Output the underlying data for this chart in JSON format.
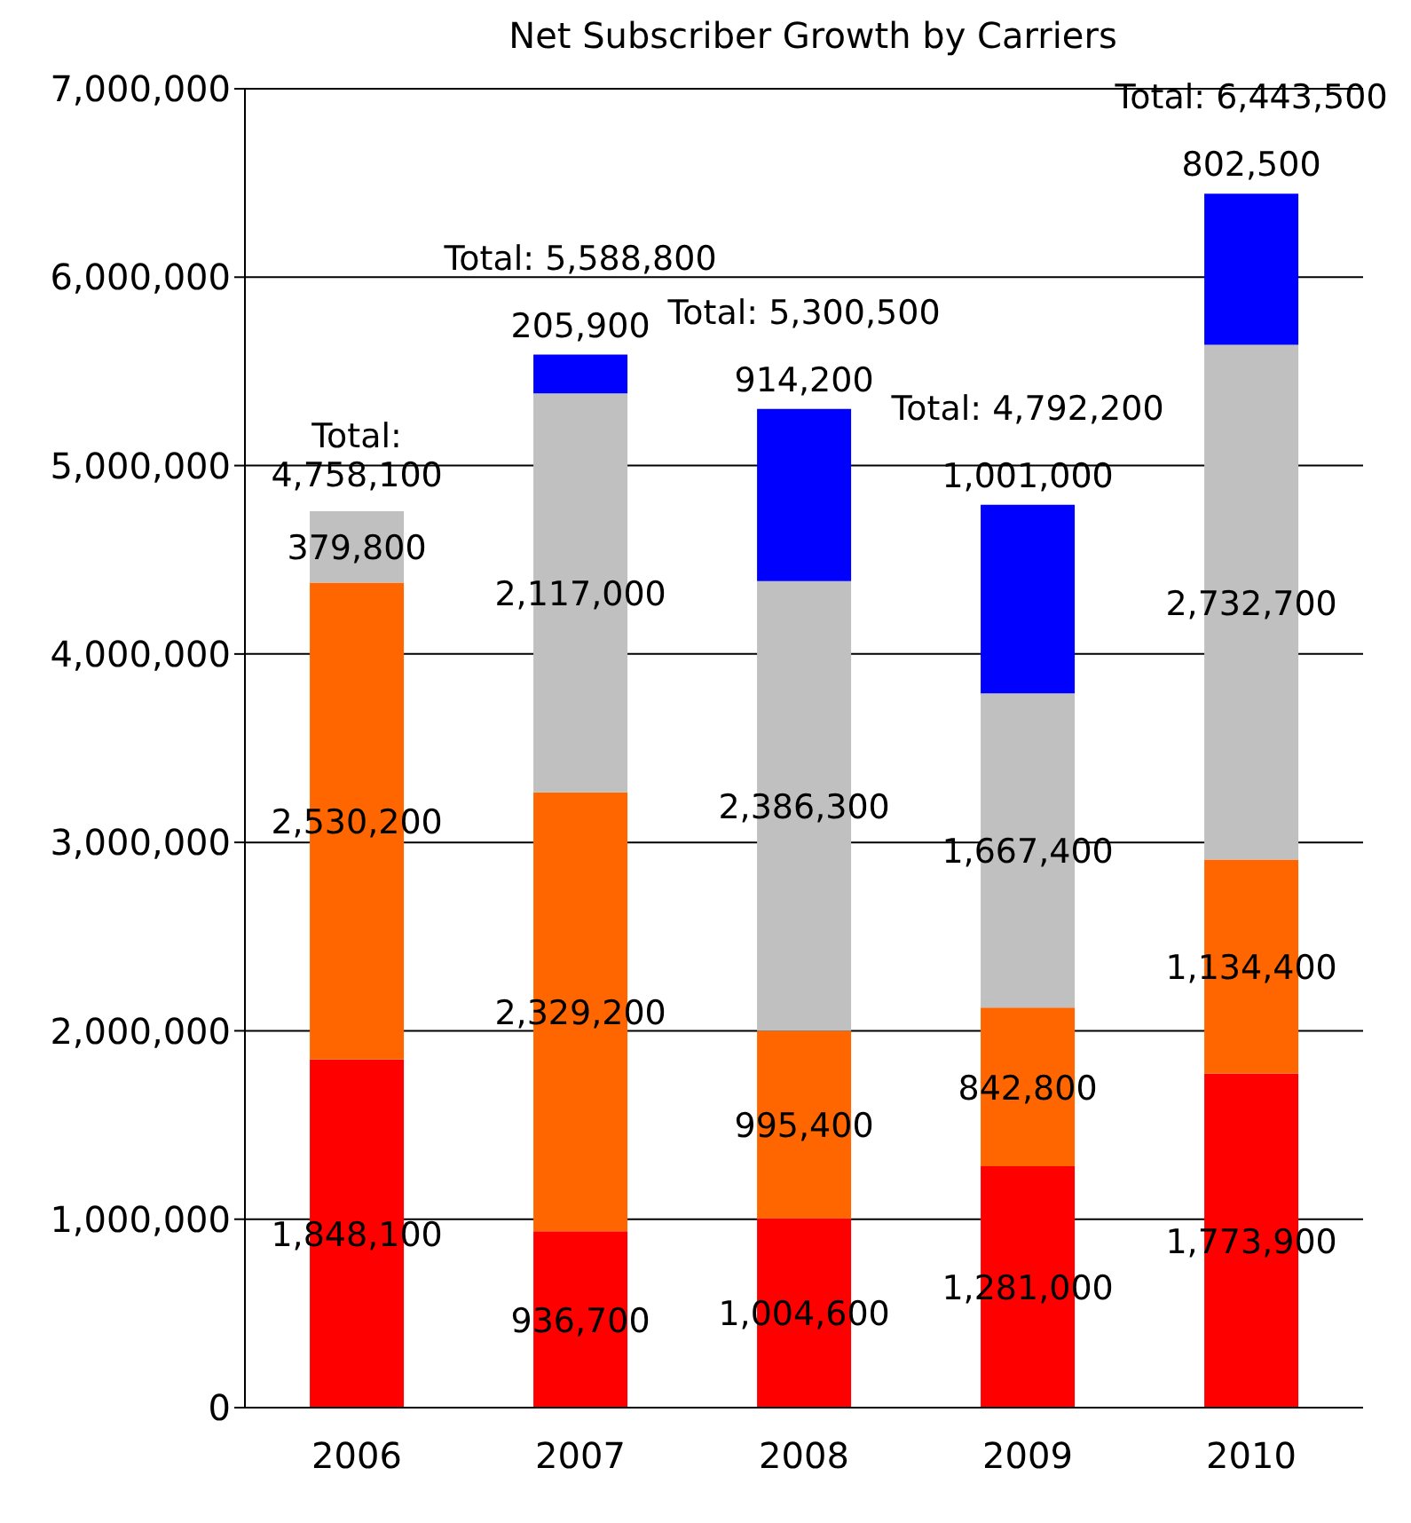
{
  "chart_data": {
    "type": "bar",
    "title": "Net Subscriber Growth by Carriers",
    "categories": [
      "2006",
      "2007",
      "2008",
      "2009",
      "2010"
    ],
    "stacked": true,
    "legend": false,
    "grid": "y",
    "series": [
      {
        "color": "#ff0000",
        "values": [
          1848100,
          936700,
          1004600,
          1281000,
          1773900
        ],
        "value_labels": [
          "1,848,100",
          "936,700",
          "1,004,600",
          "1,281,000",
          "1,773,900"
        ]
      },
      {
        "color": "#ff6600",
        "values": [
          2530200,
          2329200,
          995400,
          842800,
          1134400
        ],
        "value_labels": [
          "2,530,200",
          "2,329,200",
          "995,400",
          "842,800",
          "1,134,400"
        ]
      },
      {
        "color": "#c0c0c0",
        "values": [
          379800,
          2117000,
          2386300,
          1667400,
          2732700
        ],
        "value_labels": [
          "379,800",
          "2,117,000",
          "2,386,300",
          "1,667,400",
          "2,732,700"
        ]
      },
      {
        "color": "#0000ff",
        "values": [
          null,
          205900,
          914200,
          1001000,
          802500
        ],
        "value_labels": [
          null,
          "205,900",
          "914,200",
          "1,001,000",
          "802,500"
        ]
      }
    ],
    "totals": [
      "Total: 4,758,100",
      "Total: 5,588,800",
      "Total: 5,300,500",
      "Total: 4,792,200",
      "Total: 6,443,500"
    ],
    "ylim": [
      0,
      7000000
    ],
    "yticks": [
      {
        "value": 0,
        "label": "0"
      },
      {
        "value": 1000000,
        "label": "1,000,000"
      },
      {
        "value": 2000000,
        "label": "2,000,000"
      },
      {
        "value": 3000000,
        "label": "3,000,000"
      },
      {
        "value": 4000000,
        "label": "4,000,000"
      },
      {
        "value": 5000000,
        "label": "5,000,000"
      },
      {
        "value": 6000000,
        "label": "6,000,000"
      },
      {
        "value": 7000000,
        "label": "7,000,000"
      }
    ]
  }
}
